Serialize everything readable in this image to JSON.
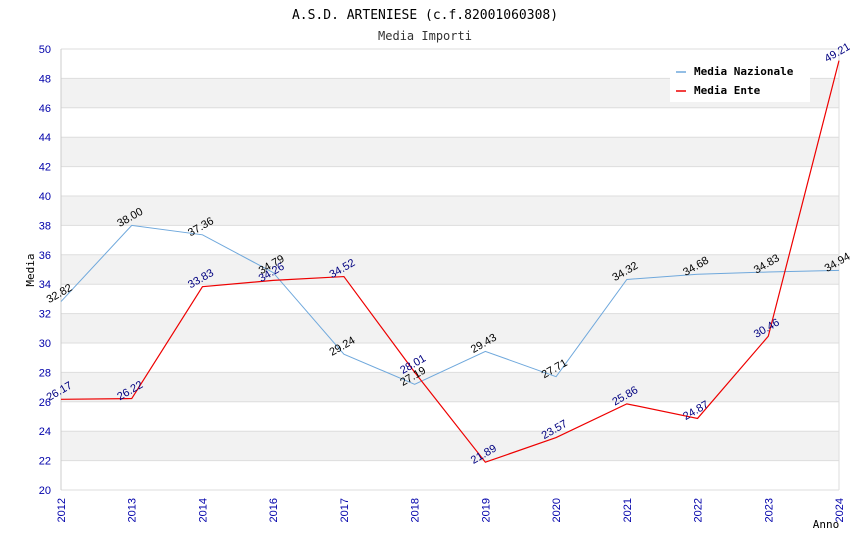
{
  "chart_data": {
    "type": "line",
    "title": "A.S.D. ARTENIESE (c.f.82001060308)",
    "subtitle": "Media Importi",
    "xlabel": "Anno",
    "ylabel": "Media",
    "ylim": [
      20,
      50
    ],
    "yticks": [
      "20",
      "22",
      "24",
      "26",
      "28",
      "30",
      "32",
      "34",
      "36",
      "38",
      "40",
      "42",
      "44",
      "46",
      "48",
      "50"
    ],
    "categories": [
      "2012",
      "2013",
      "2014",
      "2016",
      "2017",
      "2018",
      "2019",
      "2020",
      "2021",
      "2022",
      "2023",
      "2024"
    ],
    "legend_position": "top-right",
    "grid": true,
    "series": [
      {
        "name": "Media Nazionale",
        "color": "#6fa8dc",
        "label_color": "#000000",
        "values": [
          32.82,
          38.0,
          37.36,
          34.79,
          29.24,
          27.19,
          29.43,
          27.71,
          34.32,
          34.68,
          34.83,
          34.94
        ],
        "labels": [
          "32.82",
          "38.00",
          "37.36",
          "34.79",
          "29.24",
          "27.19",
          "29.43",
          "27.71",
          "34.32",
          "34.68",
          "34.83",
          "34.94"
        ]
      },
      {
        "name": "Media Ente",
        "color": "#ee0000",
        "label_color": "#000080",
        "values": [
          26.17,
          26.22,
          33.83,
          34.26,
          34.52,
          28.01,
          21.89,
          23.57,
          25.86,
          24.87,
          30.46,
          49.21
        ],
        "labels": [
          "26.17",
          "26.22",
          "33.83",
          "34.26",
          "34.52",
          "28.01",
          "21.89",
          "23.57",
          "25.86",
          "24.87",
          "30.46",
          "49.21"
        ]
      }
    ]
  }
}
